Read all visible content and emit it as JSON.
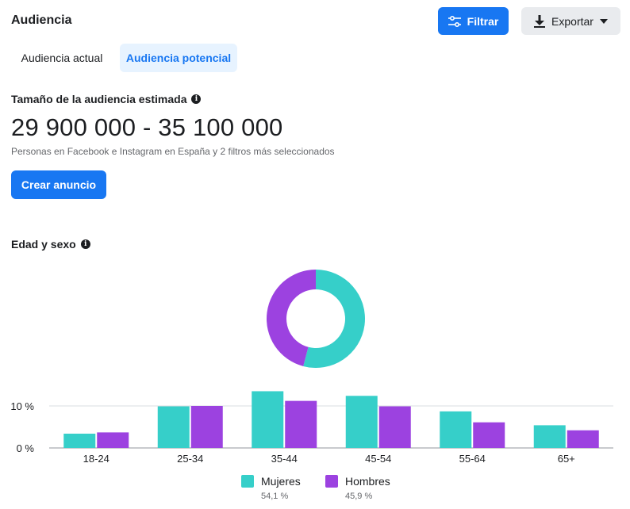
{
  "header": {
    "title": "Audiencia",
    "filter_label": "Filtrar",
    "export_label": "Exportar"
  },
  "tabs": [
    {
      "label": "Audiencia actual",
      "active": false
    },
    {
      "label": "Audiencia potencial",
      "active": true
    }
  ],
  "audience": {
    "size_label": "Tamaño de la audiencia estimada",
    "size_range": "29 900 000 - 35 100 000",
    "size_note": "Personas en Facebook e Instagram en España y 2 filtros más seleccionados",
    "create_ad_label": "Crear anuncio"
  },
  "age_gender": {
    "label": "Edad y sexo"
  },
  "colors": {
    "accent": "#1877f2",
    "women": "#36cfc9",
    "men": "#9c42e0"
  },
  "chart_data": {
    "type": "bar",
    "categories": [
      "18-24",
      "25-34",
      "35-44",
      "45-54",
      "55-64",
      "65+"
    ],
    "series": [
      {
        "name": "Mujeres",
        "share": "54,1 %",
        "share_value": 54.1,
        "values": [
          3.4,
          9.9,
          13.5,
          12.4,
          8.7,
          5.4
        ]
      },
      {
        "name": "Hombres",
        "share": "45,9 %",
        "share_value": 45.9,
        "values": [
          3.7,
          10.0,
          11.2,
          9.9,
          6.1,
          4.2
        ]
      }
    ],
    "yticks": [
      "0 %",
      "10 %"
    ],
    "ytick_values": [
      0,
      10
    ],
    "ylim": [
      0,
      14
    ]
  }
}
